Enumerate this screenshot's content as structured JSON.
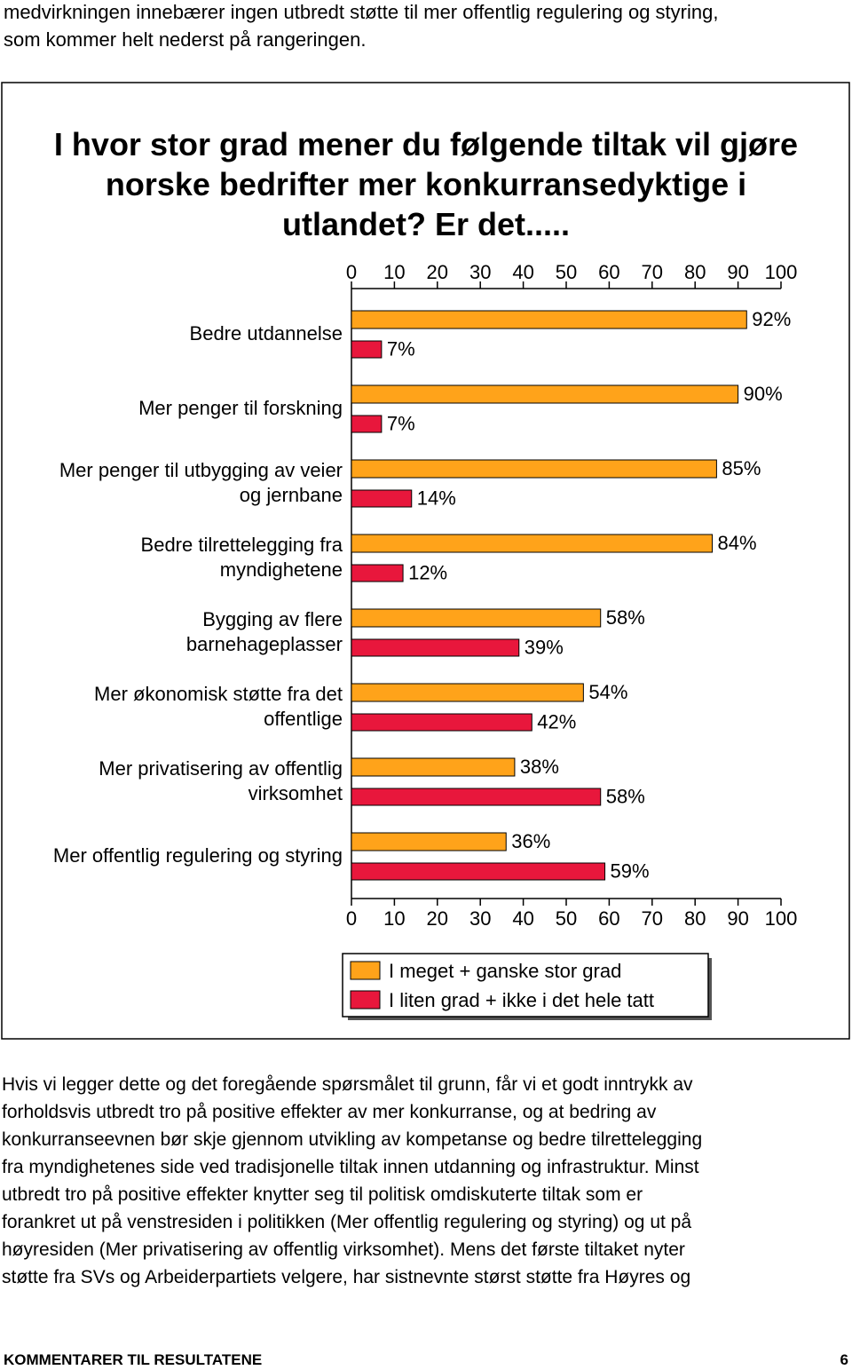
{
  "intro": "medvirkningen innebærer ingen utbredt støtte til mer offentlig regulering og styring,\nsom kommer helt nederst på rangeringen.",
  "chart_data": {
    "type": "bar",
    "orientation": "horizontal",
    "title": "I hvor stor grad mener du følgende tiltak vil gjøre\nnorske bedrifter mer konkurransedyktige i\nutlandet? Er det.....",
    "categories": [
      "Bedre utdannelse",
      "Mer penger til forskning",
      "Mer penger til utbygging av veier\nog jernbane",
      "Bedre tilrettelegging fra\nmyndighetene",
      "Bygging av flere\nbarnehageplasser",
      "Mer økonomisk støtte fra det\noffentlige",
      "Mer privatisering av offentlig\nvirksomhet",
      "Mer offentlig regulering og styring"
    ],
    "series": [
      {
        "name": "I meget + ganske stor grad",
        "color": "#ffa31a",
        "values": [
          92,
          90,
          85,
          84,
          58,
          54,
          38,
          36
        ],
        "value_labels": [
          "92%",
          "90%",
          "85%",
          "84%",
          "58%",
          "54%",
          "38%",
          "36%"
        ]
      },
      {
        "name": "I liten grad + ikke i det hele tatt",
        "color": "#e8173c",
        "values": [
          7,
          7,
          14,
          12,
          39,
          42,
          58,
          59
        ],
        "value_labels": [
          "7%",
          "7%",
          "14%",
          "12%",
          "39%",
          "42%",
          "58%",
          "59%"
        ]
      }
    ],
    "xlim": [
      0,
      100
    ],
    "xticks": [
      0,
      10,
      20,
      30,
      40,
      50,
      60,
      70,
      80,
      90,
      100
    ]
  },
  "body": "Hvis vi legger dette og det foregående spørsmålet til grunn, får vi et godt inntrykk av\nforholdsvis utbredt tro på positive effekter av mer konkurranse, og at bedring av\nkonkurranseevnen bør skje gjennom utvikling av kompetanse og bedre tilrettelegging\nfra myndighetenes side ved tradisjonelle tiltak innen utdanning og infrastruktur. Minst\nutbredt tro på positive effekter knytter seg til politisk omdiskuterte tiltak som er\nforankret ut på venstresiden i politikken (Mer offentlig regulering og styring) og ut på\nhøyresiden (Mer privatisering av offentlig virksomhet). Mens det første tiltaket nyter\nstøtte fra SVs og Arbeiderpartiets velgere, har sistnevnte størst støtte fra Høyres og",
  "footer": {
    "section": "KOMMENTARER TIL RESULTATENE",
    "page": "6"
  }
}
